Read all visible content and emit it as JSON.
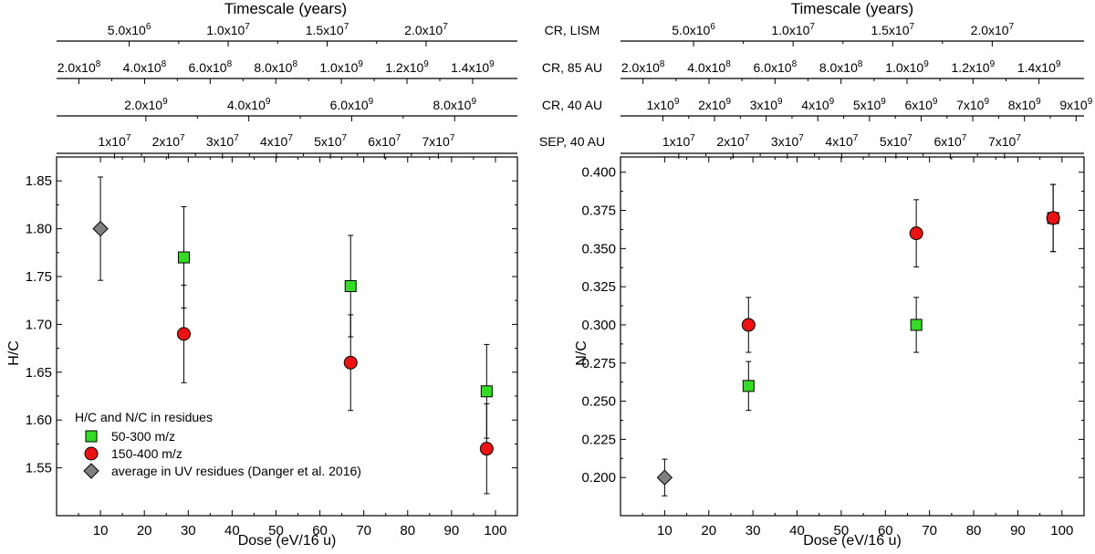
{
  "chart_data": [
    {
      "type": "scatter",
      "panel": "left",
      "xlabel": "Dose (eV/16 u)",
      "ylabel": "H/C",
      "xlim": [
        0,
        105
      ],
      "ylim": [
        1.5,
        1.875
      ],
      "xticks": [
        10,
        20,
        30,
        40,
        50,
        60,
        70,
        80,
        90,
        100
      ],
      "yticks": [
        1.55,
        1.6,
        1.65,
        1.7,
        1.75,
        1.8,
        1.85
      ],
      "ytick_labels": [
        "1.55",
        "1.60",
        "1.65",
        "1.70",
        "1.75",
        "1.80",
        "1.85"
      ],
      "series": [
        {
          "name": "50-300 m/z",
          "marker": "square",
          "color": "#33dd22",
          "points": [
            {
              "x": 29,
              "y": 1.77,
              "err": 0.053
            },
            {
              "x": 67,
              "y": 1.74,
              "err": 0.053
            },
            {
              "x": 98,
              "y": 1.63,
              "err": 0.049
            }
          ]
        },
        {
          "name": "150-400 m/z",
          "marker": "circle",
          "color": "#ee1111",
          "points": [
            {
              "x": 29,
              "y": 1.69,
              "err": 0.051
            },
            {
              "x": 67,
              "y": 1.66,
              "err": 0.05
            },
            {
              "x": 98,
              "y": 1.57,
              "err": 0.047
            }
          ]
        },
        {
          "name": "average in UV residues (Danger et al. 2016)",
          "marker": "diamond",
          "color": "#808080",
          "points": [
            {
              "x": 10,
              "y": 1.8,
              "err": 0.054
            }
          ]
        }
      ],
      "legend": {
        "title": "H/C and N/C in residues",
        "placement": "bottom-left"
      }
    },
    {
      "type": "scatter",
      "panel": "right",
      "xlabel": "Dose (eV/16 u)",
      "ylabel": "N/C",
      "xlim": [
        0,
        105
      ],
      "ylim": [
        0.175,
        0.41
      ],
      "xticks": [
        10,
        20,
        30,
        40,
        50,
        60,
        70,
        80,
        90,
        100
      ],
      "yticks": [
        0.2,
        0.225,
        0.25,
        0.275,
        0.3,
        0.325,
        0.35,
        0.375,
        0.4
      ],
      "ytick_labels": [
        "0.200",
        "0.225",
        "0.250",
        "0.275",
        "0.300",
        "0.325",
        "0.350",
        "0.375",
        "0.400"
      ],
      "series": [
        {
          "name": "50-300 m/z",
          "marker": "square",
          "color": "#33dd22",
          "points": [
            {
              "x": 29,
              "y": 0.26,
              "err": 0.016
            },
            {
              "x": 67,
              "y": 0.3,
              "err": 0.018
            },
            {
              "x": 98,
              "y": 0.37,
              "err": 0.022
            }
          ]
        },
        {
          "name": "150-400 m/z",
          "marker": "circle",
          "color": "#ee1111",
          "points": [
            {
              "x": 29,
              "y": 0.3,
              "err": 0.018
            },
            {
              "x": 67,
              "y": 0.36,
              "err": 0.022
            },
            {
              "x": 98,
              "y": 0.37,
              "err": 0.022
            }
          ]
        },
        {
          "name": "average in UV residues (Danger et al. 2016)",
          "marker": "diamond",
          "color": "#808080",
          "points": [
            {
              "x": 10,
              "y": 0.2,
              "err": 0.012
            }
          ]
        }
      ]
    }
  ],
  "timescale": {
    "title": "Timescale (years)",
    "rows": [
      {
        "name": "CR, LISM",
        "ticks": [
          {
            "dose": 16.55,
            "base": "5.0x10",
            "exp": "6"
          },
          {
            "dose": 39.1,
            "base": "1.0x10",
            "exp": "7"
          },
          {
            "dose": 61.65,
            "base": "1.5x10",
            "exp": "7"
          },
          {
            "dose": 84.2,
            "base": "2.0x10",
            "exp": "7"
          }
        ]
      },
      {
        "name": "CR, 85 AU",
        "ticks": [
          {
            "dose": 5.1,
            "base": "2.0x10",
            "exp": "8"
          },
          {
            "dose": 20.05,
            "base": "4.0x10",
            "exp": "8"
          },
          {
            "dose": 35.0,
            "base": "6.0x10",
            "exp": "8"
          },
          {
            "dose": 49.95,
            "base": "8.0x10",
            "exp": "8"
          },
          {
            "dose": 64.9,
            "base": "1.0x10",
            "exp": "9"
          },
          {
            "dose": 79.85,
            "base": "1.2x10",
            "exp": "9"
          },
          {
            "dose": 94.8,
            "base": "1.4x10",
            "exp": "9"
          }
        ]
      },
      {
        "name": "CR, 40 AU",
        "ticks": [
          {
            "dose": 20.35,
            "base": "2.0x10",
            "exp": "9"
          },
          {
            "dose": 43.8,
            "base": "4.0x10",
            "exp": "9"
          },
          {
            "dose": 67.25,
            "base": "6.0x10",
            "exp": "9"
          },
          {
            "dose": 90.7,
            "base": "8.0x10",
            "exp": "9"
          }
        ]
      },
      {
        "name": "SEP, 40 AU",
        "ticks": [
          {
            "dose": 13.2,
            "base": "1x10",
            "exp": "7"
          },
          {
            "dose": 25.5,
            "base": "2x10",
            "exp": "7"
          },
          {
            "dose": 37.8,
            "base": "3x10",
            "exp": "7"
          },
          {
            "dose": 50.1,
            "base": "4x10",
            "exp": "7"
          },
          {
            "dose": 62.4,
            "base": "5x10",
            "exp": "7"
          },
          {
            "dose": 74.7,
            "base": "6x10",
            "exp": "7"
          },
          {
            "dose": 87.0,
            "base": "7x10",
            "exp": "7"
          }
        ]
      }
    ],
    "rows_right": [
      {
        "name": "CR, 40 AU",
        "ticks": [
          {
            "dose": 9.6,
            "base": "1x10",
            "exp": "9"
          },
          {
            "dose": 21.3,
            "base": "2x10",
            "exp": "9"
          },
          {
            "dose": 33.0,
            "base": "3x10",
            "exp": "9"
          },
          {
            "dose": 44.7,
            "base": "4x10",
            "exp": "9"
          },
          {
            "dose": 56.4,
            "base": "5x10",
            "exp": "9"
          },
          {
            "dose": 68.1,
            "base": "6x10",
            "exp": "9"
          },
          {
            "dose": 79.8,
            "base": "7x10",
            "exp": "9"
          },
          {
            "dose": 91.5,
            "base": "8x10",
            "exp": "9"
          },
          {
            "dose": 103.2,
            "base": "9x10",
            "exp": "9"
          }
        ]
      }
    ]
  }
}
